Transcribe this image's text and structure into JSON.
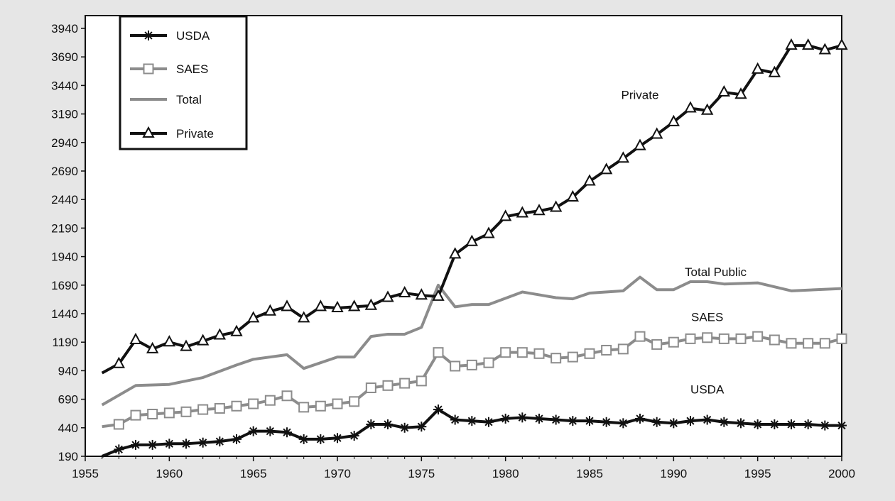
{
  "chart_data": {
    "type": "line",
    "title": "",
    "xlabel": "",
    "ylabel": "",
    "xlim": [
      1955,
      2000
    ],
    "ylim": [
      190,
      3940
    ],
    "x_ticks": [
      1955,
      1960,
      1965,
      1970,
      1975,
      1980,
      1985,
      1990,
      1995,
      2000
    ],
    "y_ticks": [
      190,
      440,
      690,
      940,
      1190,
      1440,
      1690,
      1940,
      2190,
      2440,
      2690,
      2940,
      3190,
      3440,
      3690,
      3940
    ],
    "grid": false,
    "legend": {
      "position": "top-left",
      "entries": [
        {
          "label": "USDA",
          "series": "usda",
          "marker": "asterisk"
        },
        {
          "label": "SAES",
          "series": "saes",
          "marker": "square"
        },
        {
          "label": "Total",
          "series": "total",
          "marker": "none"
        },
        {
          "label": "Private",
          "series": "private",
          "marker": "triangle"
        }
      ]
    },
    "annotations": [
      {
        "text": "Private",
        "x": 1988,
        "y": 3320
      },
      {
        "text": "Total Public",
        "x": 1992.5,
        "y": 1770
      },
      {
        "text": "SAES",
        "x": 1992,
        "y": 1375
      },
      {
        "text": "USDA",
        "x": 1992,
        "y": 740
      }
    ],
    "series": [
      {
        "key": "private",
        "color": "#111111",
        "marker": "triangle",
        "x": [
          1956,
          1957,
          1958,
          1959,
          1960,
          1961,
          1962,
          1963,
          1964,
          1965,
          1966,
          1967,
          1968,
          1969,
          1970,
          1971,
          1972,
          1973,
          1974,
          1975,
          1976,
          1977,
          1978,
          1979,
          1980,
          1981,
          1982,
          1983,
          1984,
          1985,
          1986,
          1987,
          1988,
          1989,
          1990,
          1991,
          1992,
          1993,
          1994,
          1995,
          1996,
          1997,
          1998,
          1999,
          2000
        ],
        "values": [
          920,
          1000,
          1210,
          1130,
          1190,
          1150,
          1200,
          1250,
          1280,
          1400,
          1460,
          1500,
          1400,
          1500,
          1490,
          1500,
          1510,
          1580,
          1620,
          1600,
          1590,
          1960,
          2070,
          2140,
          2290,
          2320,
          2340,
          2370,
          2460,
          2600,
          2700,
          2800,
          2910,
          3010,
          3120,
          3240,
          3220,
          3380,
          3360,
          3580,
          3550,
          3790,
          3790,
          3750,
          3790
        ],
        "markers_x": [
          1957,
          1958,
          1959,
          1960,
          1961,
          1962,
          1963,
          1964,
          1965,
          1966,
          1967,
          1968,
          1969,
          1970,
          1971,
          1972,
          1973,
          1974,
          1975,
          1976,
          1977,
          1978,
          1979,
          1980,
          1981,
          1982,
          1983,
          1984,
          1985,
          1986,
          1987,
          1988,
          1989,
          1990,
          1991,
          1992,
          1993,
          1994,
          1995,
          1996,
          1997,
          1998,
          1999,
          2000
        ]
      },
      {
        "key": "total",
        "color": "#8c8c8c",
        "marker": "none",
        "x": [
          1956,
          1958,
          1960,
          1962,
          1964,
          1965,
          1967,
          1968,
          1970,
          1971,
          1972,
          1973,
          1974,
          1975,
          1976,
          1977,
          1978,
          1979,
          1981,
          1983,
          1984,
          1985,
          1987,
          1988,
          1989,
          1990,
          1991,
          1992,
          1993,
          1995,
          1997,
          2000
        ],
        "values": [
          640,
          810,
          820,
          880,
          990,
          1040,
          1080,
          960,
          1060,
          1060,
          1240,
          1260,
          1260,
          1320,
          1690,
          1500,
          1520,
          1520,
          1630,
          1580,
          1570,
          1620,
          1640,
          1760,
          1650,
          1650,
          1720,
          1720,
          1700,
          1710,
          1640,
          1660
        ]
      },
      {
        "key": "saes",
        "color": "#8c8c8c",
        "marker": "square",
        "x": [
          1956,
          1957,
          1958,
          1959,
          1960,
          1961,
          1962,
          1963,
          1964,
          1965,
          1966,
          1967,
          1968,
          1969,
          1970,
          1971,
          1972,
          1973,
          1974,
          1975,
          1976,
          1977,
          1978,
          1979,
          1980,
          1981,
          1982,
          1983,
          1984,
          1985,
          1986,
          1987,
          1988,
          1989,
          1990,
          1991,
          1992,
          1993,
          1994,
          1995,
          1996,
          1997,
          1998,
          1999,
          2000
        ],
        "values": [
          450,
          470,
          550,
          560,
          570,
          580,
          600,
          610,
          630,
          650,
          680,
          720,
          620,
          630,
          650,
          670,
          790,
          810,
          830,
          850,
          1100,
          980,
          990,
          1010,
          1100,
          1100,
          1090,
          1050,
          1060,
          1090,
          1120,
          1130,
          1240,
          1170,
          1190,
          1220,
          1230,
          1220,
          1220,
          1240,
          1210,
          1180,
          1180,
          1180,
          1220
        ],
        "markers_x": [
          1957,
          1958,
          1959,
          1960,
          1961,
          1962,
          1963,
          1964,
          1965,
          1966,
          1967,
          1968,
          1969,
          1970,
          1971,
          1972,
          1973,
          1974,
          1975,
          1976,
          1977,
          1978,
          1979,
          1980,
          1981,
          1982,
          1983,
          1984,
          1985,
          1986,
          1987,
          1988,
          1989,
          1990,
          1991,
          1992,
          1993,
          1994,
          1995,
          1996,
          1997,
          1998,
          1999,
          2000
        ]
      },
      {
        "key": "usda",
        "color": "#111111",
        "marker": "asterisk",
        "x": [
          1956,
          1957,
          1958,
          1959,
          1960,
          1961,
          1962,
          1963,
          1964,
          1965,
          1966,
          1967,
          1968,
          1969,
          1970,
          1971,
          1972,
          1973,
          1974,
          1975,
          1976,
          1977,
          1978,
          1979,
          1980,
          1981,
          1982,
          1983,
          1984,
          1985,
          1986,
          1987,
          1988,
          1989,
          1990,
          1991,
          1992,
          1993,
          1994,
          1995,
          1996,
          1997,
          1998,
          1999,
          2000
        ],
        "values": [
          190,
          250,
          290,
          290,
          300,
          300,
          310,
          320,
          340,
          410,
          410,
          400,
          340,
          340,
          350,
          370,
          470,
          470,
          440,
          450,
          600,
          510,
          500,
          490,
          520,
          530,
          520,
          510,
          500,
          500,
          490,
          480,
          520,
          490,
          480,
          500,
          510,
          490,
          480,
          470,
          470,
          470,
          470,
          460,
          460
        ],
        "markers_x": [
          1957,
          1958,
          1959,
          1960,
          1961,
          1962,
          1963,
          1964,
          1965,
          1966,
          1967,
          1968,
          1969,
          1970,
          1971,
          1972,
          1973,
          1974,
          1975,
          1976,
          1977,
          1978,
          1979,
          1980,
          1981,
          1982,
          1983,
          1984,
          1985,
          1986,
          1987,
          1988,
          1989,
          1990,
          1991,
          1992,
          1993,
          1994,
          1995,
          1996,
          1997,
          1998,
          1999,
          2000
        ]
      }
    ]
  }
}
